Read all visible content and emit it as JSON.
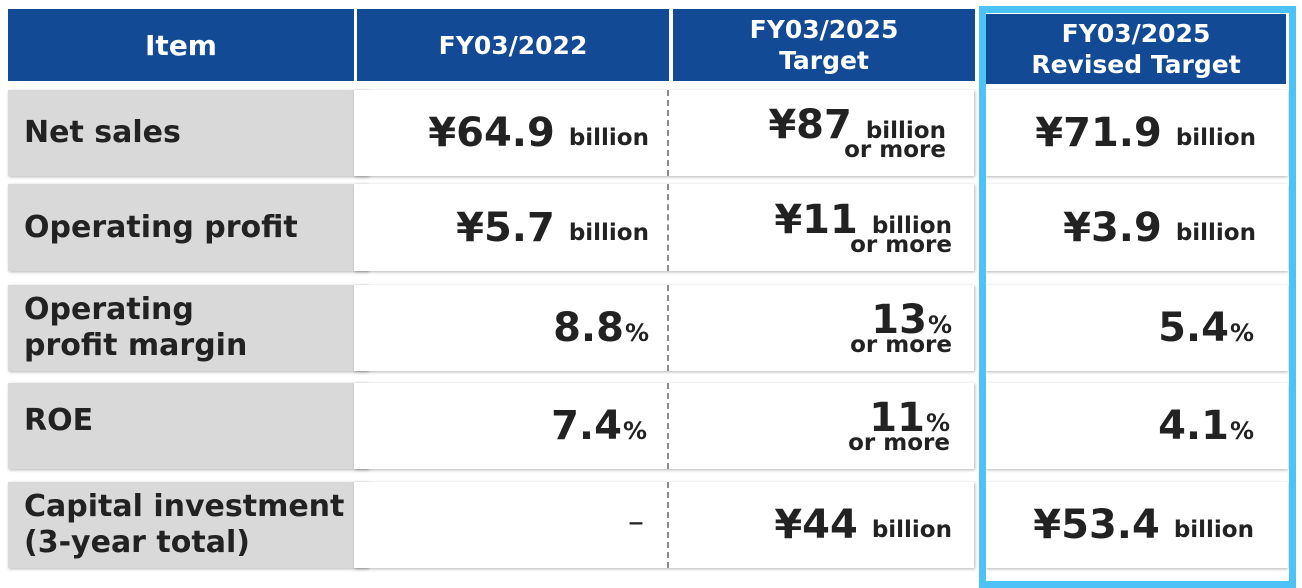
{
  "headers": {
    "item": "Item",
    "fy2022": "FY03/2022",
    "target_line1": "FY03/2025",
    "target_line2": "Target",
    "revised_line1": "FY03/2025",
    "revised_line2": "Revised Target"
  },
  "rows": [
    {
      "label_line1": "Net sales",
      "label_line2": "",
      "fy2022": {
        "value": "¥64.9",
        "unit": "billion"
      },
      "target": {
        "value": "¥87",
        "unit": "billion",
        "note": "or more"
      },
      "revised": {
        "value": "¥71.9",
        "unit": "billion"
      }
    },
    {
      "label_line1": "Operating profit",
      "label_line2": "",
      "fy2022": {
        "value": "¥5.7",
        "unit": "billion"
      },
      "target": {
        "value": "¥11",
        "unit": "billion",
        "note": "or more"
      },
      "revised": {
        "value": "¥3.9",
        "unit": "billion"
      }
    },
    {
      "label_line1": "Operating",
      "label_line2": "profit margin",
      "fy2022": {
        "value": "8.8",
        "unit": "%"
      },
      "target": {
        "value": "13",
        "unit": "%",
        "note": "or more"
      },
      "revised": {
        "value": "5.4",
        "unit": "%"
      }
    },
    {
      "label_line1": "ROE",
      "label_line2": "",
      "fy2022": {
        "value": "7.4",
        "unit": "%"
      },
      "target": {
        "value": "11",
        "unit": "%",
        "note": "or more"
      },
      "revised": {
        "value": "4.1",
        "unit": "%"
      }
    },
    {
      "label_line1": "Capital investment",
      "label_line2": "(3-year total)",
      "fy2022": {
        "value": "–"
      },
      "target": {
        "value": "¥44",
        "unit": "billion"
      },
      "revised": {
        "value": "¥53.4",
        "unit": "billion"
      }
    }
  ],
  "colors": {
    "header_bg": "#124a95",
    "label_bg": "#d9d9d9",
    "highlight_border": "#4cc2f6"
  }
}
